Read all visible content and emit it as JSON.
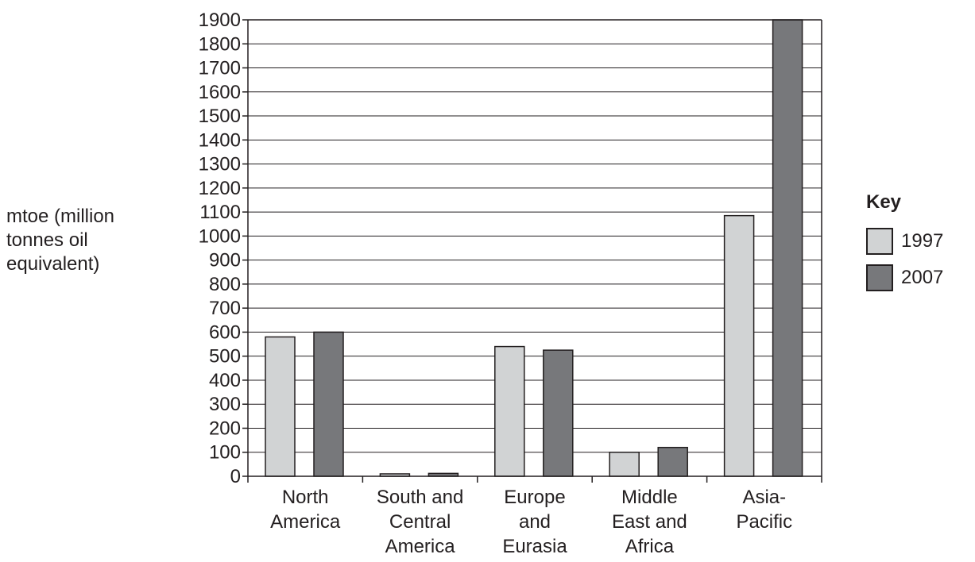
{
  "chart_data": {
    "type": "bar",
    "categories": [
      [
        "North",
        "America"
      ],
      [
        "South and",
        "Central",
        "America"
      ],
      [
        "Europe",
        "and",
        "Eurasia"
      ],
      [
        "Middle",
        "East and",
        "Africa"
      ],
      [
        "Asia-",
        "Pacific"
      ]
    ],
    "series": [
      {
        "name": "1997",
        "color": "#d1d3d4",
        "values": [
          580,
          10,
          540,
          100,
          1085
        ]
      },
      {
        "name": "2007",
        "color": "#77787b",
        "values": [
          600,
          12,
          525,
          120,
          1900
        ]
      }
    ],
    "ylabel": [
      "mtoe (million",
      "tonnes oil",
      "equivalent)"
    ],
    "ylim": [
      0,
      1900
    ],
    "yticks": [
      0,
      100,
      200,
      300,
      400,
      500,
      600,
      700,
      800,
      900,
      1000,
      1100,
      1200,
      1300,
      1400,
      1500,
      1600,
      1700,
      1800,
      1900
    ],
    "grid": true,
    "legend": {
      "title": "Key",
      "placement": "right"
    }
  }
}
